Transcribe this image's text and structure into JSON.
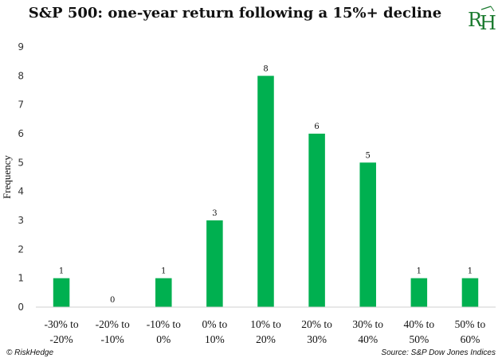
{
  "chart_data": {
    "type": "bar",
    "title": "S&P 500: one-year return following a 15%+ decline",
    "ylabel": "Frequency",
    "xlabel": "",
    "ylim": [
      0,
      9
    ],
    "yticks": [
      0,
      1,
      2,
      3,
      4,
      5,
      6,
      7,
      8,
      9
    ],
    "grid": false,
    "legend": "none",
    "bar_color": "#00B050",
    "categories": [
      [
        "-30% to",
        "-20%"
      ],
      [
        "-20% to",
        "-10%"
      ],
      [
        "-10% to",
        "0%"
      ],
      [
        "0% to",
        "10%"
      ],
      [
        "10% to",
        "20%"
      ],
      [
        "20% to",
        "30%"
      ],
      [
        "30% to",
        "40%"
      ],
      [
        "40% to",
        "50%"
      ],
      [
        "50% to",
        "60%"
      ]
    ],
    "values": [
      1,
      0,
      1,
      3,
      8,
      6,
      5,
      1,
      1
    ]
  },
  "logo": {
    "text": "RH",
    "color": "#1a7a2e",
    "icon": "riskhedge-logo-icon"
  },
  "footer": {
    "left": "© RiskHedge",
    "right": "Source: S&P Dow Jones Indices"
  }
}
